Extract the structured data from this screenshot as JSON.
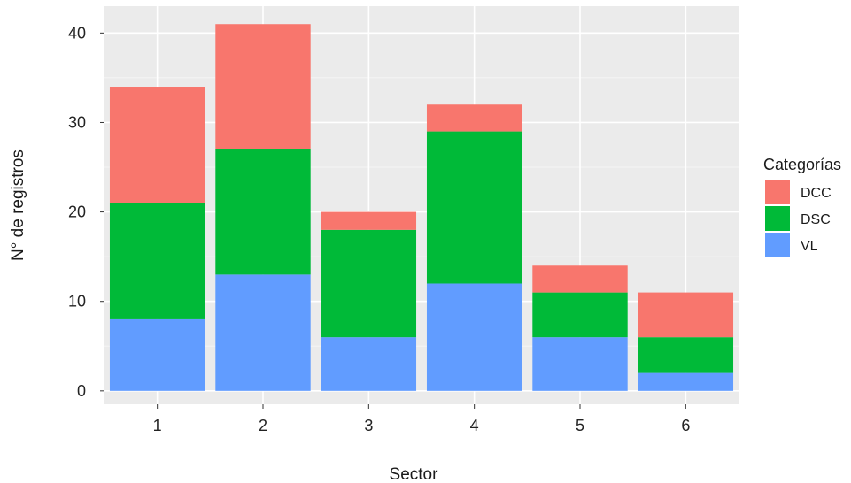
{
  "chart_data": {
    "type": "bar",
    "stacked": true,
    "categories": [
      "1",
      "2",
      "3",
      "4",
      "5",
      "6"
    ],
    "series": [
      {
        "name": "VL",
        "color": "#619CFF",
        "values": [
          8,
          13,
          6,
          12,
          6,
          2
        ]
      },
      {
        "name": "DSC",
        "color": "#00BA38",
        "values": [
          13,
          14,
          12,
          17,
          5,
          4
        ]
      },
      {
        "name": "DCC",
        "color": "#F8766D",
        "values": [
          13,
          14,
          2,
          3,
          3,
          5
        ]
      }
    ],
    "legend_order": [
      "DCC",
      "DSC",
      "VL"
    ],
    "xlabel": "Sector",
    "ylabel": "N° de registros",
    "ylim": [
      -1.5,
      43
    ],
    "yticks": [
      0,
      10,
      20,
      30,
      40
    ],
    "legend": {
      "title": "Categorías",
      "position": "right"
    },
    "grid": true,
    "panel_background": "#EBEBEB"
  }
}
